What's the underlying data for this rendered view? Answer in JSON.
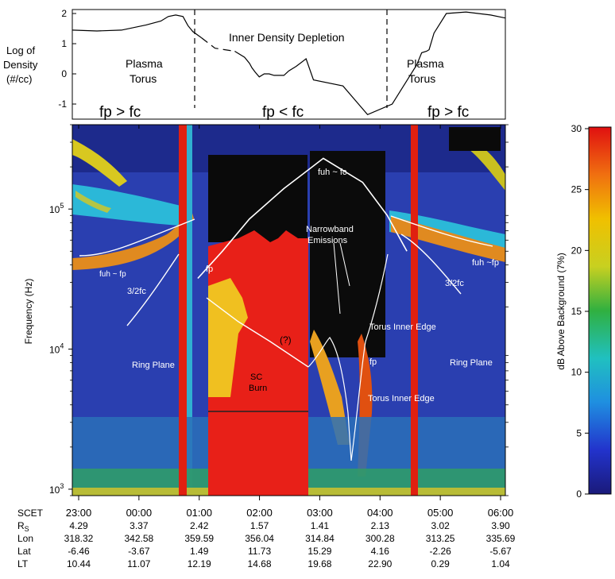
{
  "density_panel": {
    "ylabel_lines": [
      "Log of",
      "Density",
      "(#/cc)"
    ],
    "yticks": [
      "2",
      "1",
      "0",
      "-1"
    ],
    "annotations": {
      "plasma_torus_left": [
        "Plasma",
        "Torus"
      ],
      "plasma_torus_right": [
        "Plasma",
        "Torus"
      ],
      "depletion": "Inner Density Depletion",
      "fp_gt_fc_left": "fp > fc",
      "fp_lt_fc": "fp < fc",
      "fp_gt_fc_right": "fp > fc"
    }
  },
  "spectrogram": {
    "ylabel": "Frequency (Hz)",
    "ytick_base": "10",
    "ytick_exps": [
      "5",
      "4",
      "3"
    ],
    "labels": {
      "fuh_fc": "fuh ~ fc",
      "narrowband_1": "Narrowband",
      "narrowband_2": "Emissions",
      "fuh_fp_left": "fuh ~ fp",
      "fp_left": "fp",
      "fuh_fp_right": "fuh ~fp",
      "three_half_fc_left": "3/2fc",
      "three_half_fc_right": "3/2fc",
      "torus_inner_edge_1": "Torus Inner Edge",
      "torus_inner_edge_2": "Torus Inner Edge",
      "ring_plane_left": "Ring Plane",
      "ring_plane_right": "Ring Plane",
      "question": "(?)",
      "sc_1": "SC",
      "sc_2": "Burn",
      "fp_mid": "fp"
    }
  },
  "colorbar": {
    "label": "dB Above Background (7%)",
    "ticks": [
      "30",
      "25",
      "20",
      "15",
      "10",
      "5",
      "0"
    ],
    "colors": [
      "#1a1a7a",
      "#2233cc",
      "#1f8fe0",
      "#20c0c0",
      "#30b040",
      "#c8d020",
      "#f0c000",
      "#f07010",
      "#e01010"
    ]
  },
  "ephemeris": {
    "row_labels": [
      "SCET",
      "R",
      "Lon",
      "Lat",
      "LT"
    ],
    "rs_sub": "S",
    "rows": [
      [
        "23:00",
        "00:00",
        "01:00",
        "02:00",
        "03:00",
        "04:00",
        "05:00",
        "06:00"
      ],
      [
        "4.29",
        "3.37",
        "2.42",
        "1.57",
        "1.41",
        "2.13",
        "3.02",
        "3.90"
      ],
      [
        "318.32",
        "342.58",
        "359.59",
        "356.04",
        "314.84",
        "300.28",
        "313.25",
        "335.69"
      ],
      [
        "-6.46",
        "-3.67",
        "1.49",
        "11.73",
        "15.29",
        "4.16",
        "-2.26",
        "-5.67"
      ],
      [
        "10.44",
        "11.07",
        "12.19",
        "14.68",
        "19.68",
        "22.90",
        "0.29",
        "1.04"
      ]
    ]
  },
  "chart_data": [
    {
      "type": "line",
      "xlabel": "",
      "ylabel": "Log of Density (#/cc)",
      "ylim": [
        -1.3,
        2.1
      ],
      "x_hours": [
        0.0,
        0.5,
        1.0,
        1.5,
        1.8,
        1.95,
        2.1,
        2.25,
        2.35,
        2.45,
        2.62,
        2.9,
        3.3,
        3.5,
        3.6,
        3.65,
        3.72,
        3.8,
        3.9,
        4.0,
        4.1,
        4.2,
        4.3,
        4.4,
        4.55,
        4.75,
        4.9,
        5.5,
        6.0,
        6.5,
        7.0,
        7.1,
        7.2,
        7.25,
        7.35,
        7.6,
        8.0,
        8.5,
        8.8
      ],
      "density": [
        1.45,
        1.42,
        1.45,
        1.62,
        1.75,
        1.9,
        1.95,
        1.9,
        1.6,
        1.4,
        1.2,
        0.85,
        0.75,
        0.55,
        0.35,
        0.2,
        0.05,
        -0.1,
        0.0,
        0.0,
        -0.05,
        -0.05,
        -0.05,
        0.1,
        0.25,
        0.5,
        -0.2,
        -0.4,
        -1.35,
        -1.0,
        0.3,
        0.7,
        0.75,
        0.8,
        1.35,
        2.0,
        2.05,
        1.95,
        1.85
      ]
    },
    {
      "type": "heatmap",
      "ylabel": "Frequency (Hz)",
      "yscale": "log",
      "ylim": [
        900,
        400000
      ],
      "colorbar_label": "dB Above Background (7%)",
      "colorbar_range": [
        0,
        30
      ],
      "fuh_fc_curve": {
        "x_hours": [
          2.55,
          3.05,
          3.6,
          4.3,
          5.1,
          5.9,
          6.4,
          6.8
        ],
        "freq_hz": [
          32000,
          50000,
          85000,
          140000,
          230000,
          155000,
          90000,
          50000
        ]
      }
    }
  ]
}
